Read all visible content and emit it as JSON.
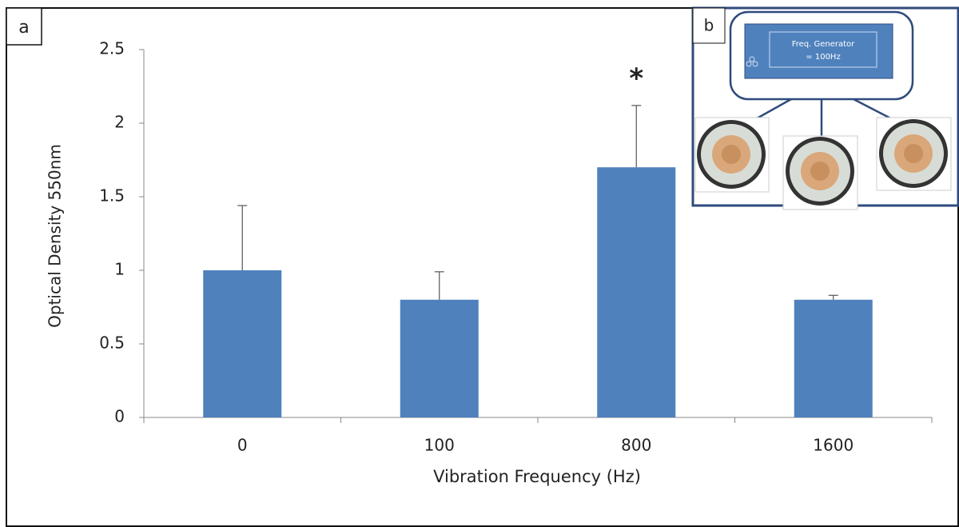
{
  "chart_data": {
    "type": "bar",
    "panel_label": "a",
    "x_label": "Vibration Frequency (Hz)",
    "y_label": "Optical Density 550nm",
    "categories": [
      "0",
      "100",
      "800",
      "1600"
    ],
    "values": [
      1.0,
      0.8,
      1.7,
      0.8
    ],
    "errors": [
      0.44,
      0.19,
      0.42,
      0.03
    ],
    "color": "#4f81bd",
    "ylim": [
      0,
      2.5
    ],
    "yticks": [
      0,
      0.5,
      1,
      1.5,
      2,
      2.5
    ],
    "grid": false,
    "annotations": [
      "*"
    ]
  },
  "inset": {
    "panel_label": "b",
    "display_lines": [
      "Freq. Generator",
      "= 100Hz"
    ]
  }
}
